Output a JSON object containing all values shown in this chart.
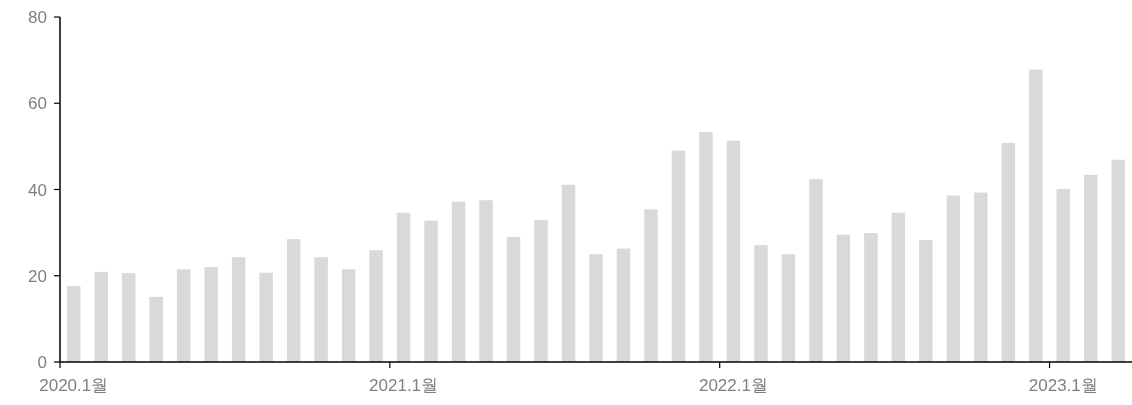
{
  "chart_data": {
    "type": "bar",
    "categories": [
      "2020.1월",
      null,
      null,
      null,
      null,
      null,
      null,
      null,
      null,
      null,
      null,
      null,
      "2021.1월",
      null,
      null,
      null,
      null,
      null,
      null,
      null,
      null,
      null,
      null,
      null,
      "2022.1월",
      null,
      null,
      null,
      null,
      null,
      null,
      null,
      null,
      null,
      null,
      null,
      "2023.1월",
      null,
      null
    ],
    "values": [
      17.6,
      20.9,
      20.6,
      15.1,
      21.5,
      22.0,
      24.3,
      20.7,
      28.5,
      24.3,
      21.5,
      25.9,
      34.6,
      32.8,
      37.2,
      37.5,
      29.0,
      32.9,
      41.1,
      25.0,
      26.3,
      35.4,
      49.0,
      53.3,
      51.3,
      27.1,
      25.0,
      42.4,
      29.5,
      29.9,
      34.6,
      28.3,
      38.6,
      39.3,
      50.8,
      67.8,
      40.1,
      43.4,
      46.9
    ],
    "color": "#d9d9d9",
    "ylim": [
      0,
      80
    ],
    "yticks": [
      0,
      20,
      40,
      60,
      80
    ]
  }
}
